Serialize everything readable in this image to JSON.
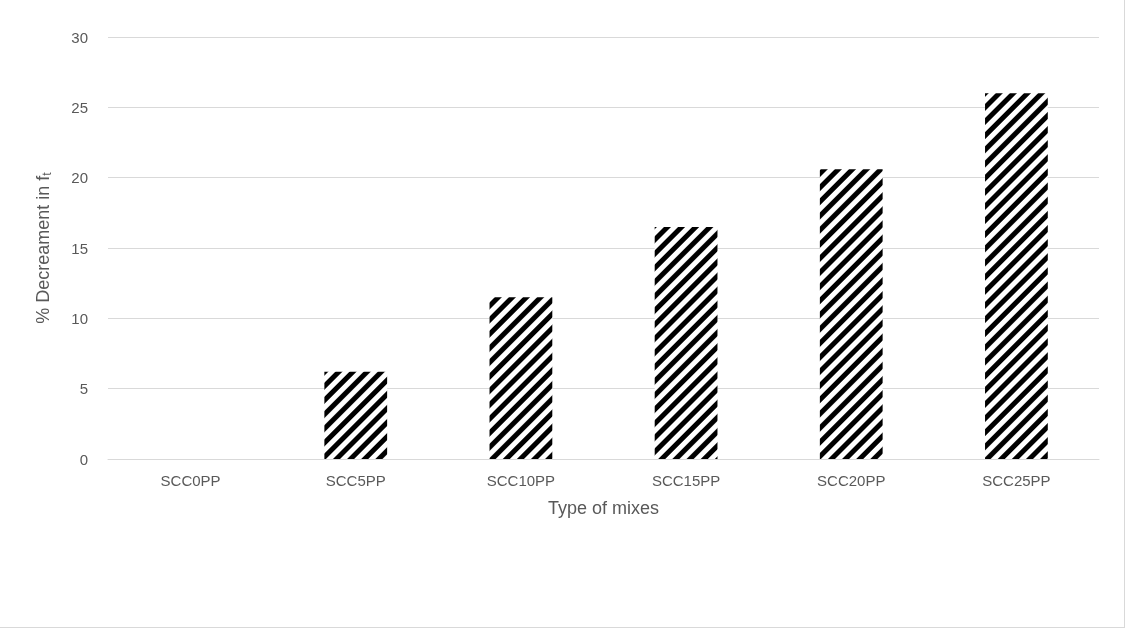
{
  "chart_data": {
    "type": "bar",
    "xlabel": "Type of mixes",
    "ylabel": "% Decreament in f$_{t}$",
    "categories": [
      "SCC0PP",
      "SCC5PP",
      "SCC10PP",
      "SCC15PP",
      "SCC20PP",
      "SCC25PP"
    ],
    "values": [
      0,
      6.2,
      11.5,
      16.5,
      20.6,
      26
    ],
    "color": "#000000",
    "ylim": [
      0,
      30
    ],
    "yticks": [
      0,
      5,
      10,
      15,
      20,
      25,
      30
    ],
    "grid": "y"
  }
}
